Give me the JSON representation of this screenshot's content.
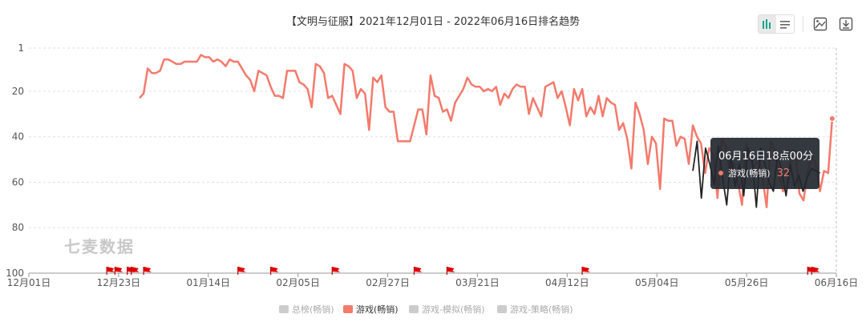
{
  "chart_data": {
    "type": "line",
    "title": "【文明与征服】2021年12月01日 - 2022年06月16日排名趋势",
    "x_start": "2021-12-01",
    "x_end": "2022-06-16",
    "x_ticks": [
      "12月01日",
      "12月23日",
      "01月14日",
      "02月05日",
      "02月27日",
      "03月21日",
      "04月12日",
      "05月04日",
      "05月26日",
      "06月16日"
    ],
    "y_ticks": [
      1,
      20,
      40,
      60,
      80,
      100
    ],
    "ylim": [
      1,
      100
    ],
    "y_inverted": true,
    "grid": true,
    "series": [
      {
        "name": "游戏(畅销)",
        "color": "#f47a6c",
        "x_start": "2021-12-28",
        "values": [
          23,
          21,
          10,
          12,
          12,
          11,
          6,
          6,
          7,
          8,
          8,
          7,
          7,
          7,
          7,
          4,
          5,
          5,
          7,
          6,
          7,
          9,
          6,
          7,
          7,
          10,
          13,
          15,
          20,
          11,
          12,
          13,
          18,
          22,
          22,
          23,
          11,
          11,
          11,
          16,
          17,
          19,
          27,
          8,
          9,
          12,
          23,
          22,
          26,
          30,
          8,
          9,
          11,
          23,
          19,
          21,
          37,
          14,
          16,
          13,
          27,
          29,
          29,
          42,
          42,
          42,
          42,
          35,
          28,
          28,
          39,
          13,
          22,
          23,
          29,
          28,
          33,
          25,
          22,
          19,
          14,
          17,
          18,
          18,
          20,
          19,
          20,
          18,
          26,
          21,
          23,
          19,
          17,
          18,
          18,
          30,
          23,
          27,
          31,
          18,
          17,
          16,
          23,
          20,
          27,
          35,
          19,
          24,
          19,
          31,
          27,
          30,
          22,
          31,
          23,
          25,
          26,
          37,
          34,
          41,
          54,
          25,
          30,
          37,
          52,
          40,
          43,
          63,
          32,
          33,
          33,
          44,
          40,
          41,
          52,
          35,
          40,
          43,
          56,
          45,
          48,
          67,
          41,
          44,
          55,
          52,
          60,
          70,
          43,
          50,
          54,
          48,
          58,
          71,
          42,
          46,
          56,
          64,
          62,
          46,
          46,
          65,
          68,
          56,
          48,
          52,
          64,
          55,
          56,
          32
        ]
      },
      {
        "name": "总榜(畅销)",
        "color": "#cccccc",
        "values": []
      },
      {
        "name": "游戏-模拟(畅销)",
        "color": "#cccccc",
        "values": []
      },
      {
        "name": "游戏-策略(畅销)",
        "color": "#cccccc",
        "values": []
      }
    ],
    "dark_segment": {
      "x_start": "2022-05-12",
      "x_end": "2022-06-12",
      "values": [
        55,
        42,
        67,
        45,
        52,
        61,
        44,
        58,
        70,
        48,
        62,
        52,
        66,
        45,
        50,
        71,
        45,
        52,
        60,
        64,
        48,
        55,
        66,
        52,
        62,
        57,
        64,
        58,
        54,
        55,
        56
      ]
    },
    "event_flags": [
      "2021-12-20",
      "2021-12-22",
      "2021-12-25",
      "2021-12-26",
      "2021-12-29",
      "2022-01-21",
      "2022-01-29",
      "2022-02-13",
      "2022-03-05",
      "2022-03-13",
      "2022-04-15",
      "2022-06-09",
      "2022-06-10"
    ],
    "legend": {
      "position": "bottom",
      "active": "游戏(畅销)"
    },
    "tooltip": {
      "title": "06月16日18点00分",
      "series": "游戏(畅销)",
      "value": "32"
    },
    "watermark": "七麦数据",
    "colors": {
      "line": "#f47a6c",
      "flag": "#e00000",
      "grid": "#e0e0e0",
      "axis": "#999999",
      "inactive": "#cccccc",
      "accent": "#17a589"
    }
  },
  "toolbar": {
    "icons": [
      "bar-chart-icon",
      "list-icon",
      "image-download-icon",
      "download-icon"
    ]
  }
}
